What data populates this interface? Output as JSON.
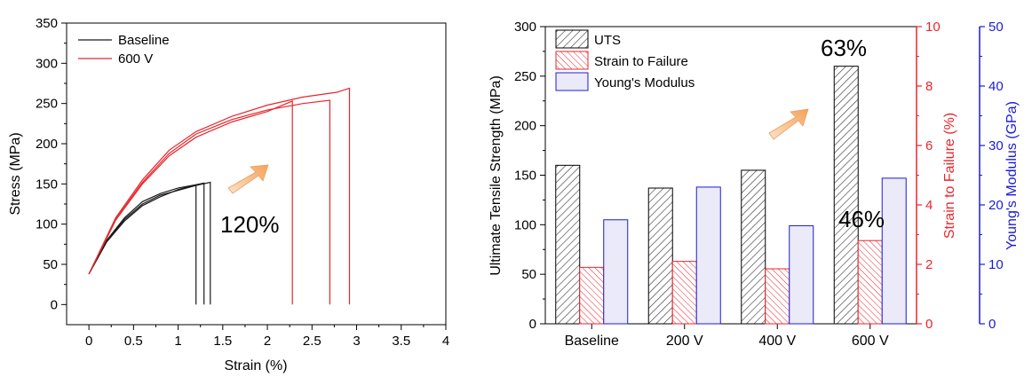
{
  "chart_data": [
    {
      "type": "line",
      "xlabel": "Strain (%)",
      "ylabel": "Stress (MPa)",
      "xlim": [
        -0.25,
        4
      ],
      "ylim": [
        -25,
        350
      ],
      "xticks": [
        "0",
        "0.5",
        "1",
        "1.5",
        "2",
        "2.5",
        "3",
        "3.5",
        "4"
      ],
      "yticks": [
        "0",
        "50",
        "100",
        "150",
        "200",
        "250",
        "300",
        "350"
      ],
      "legend_position": "top-left",
      "annotation": "120%",
      "series": [
        {
          "name": "Baseline",
          "color": "#1a1a1a",
          "legend": true,
          "points": [
            [
              0,
              38
            ],
            [
              0.2,
              78
            ],
            [
              0.4,
              104
            ],
            [
              0.6,
              123
            ],
            [
              0.8,
              134
            ],
            [
              1.0,
              143
            ],
            [
              1.1,
              146
            ],
            [
              1.2,
              148
            ],
            [
              1.2,
              0
            ]
          ]
        },
        {
          "name": "",
          "color": "#1a1a1a",
          "legend": false,
          "points": [
            [
              0,
              38
            ],
            [
              0.2,
              80
            ],
            [
              0.4,
              108
            ],
            [
              0.6,
              128
            ],
            [
              0.8,
              138
            ],
            [
              1.0,
              145
            ],
            [
              1.2,
              149
            ],
            [
              1.29,
              151
            ],
            [
              1.29,
              0
            ]
          ]
        },
        {
          "name": "",
          "color": "#1a1a1a",
          "legend": false,
          "points": [
            [
              0,
              38
            ],
            [
              0.2,
              79
            ],
            [
              0.4,
              106
            ],
            [
              0.6,
              125
            ],
            [
              0.8,
              136
            ],
            [
              1.0,
              142
            ],
            [
              1.2,
              148
            ],
            [
              1.36,
              152
            ],
            [
              1.36,
              0
            ]
          ]
        },
        {
          "name": "600 V",
          "color": "#e8262c",
          "legend": true,
          "points": [
            [
              0,
              38
            ],
            [
              0.3,
              105
            ],
            [
              0.6,
              150
            ],
            [
              0.9,
              185
            ],
            [
              1.2,
              208
            ],
            [
              1.6,
              227
            ],
            [
              2.0,
              240
            ],
            [
              2.28,
              253
            ],
            [
              2.28,
              0
            ]
          ]
        },
        {
          "name": "",
          "color": "#e8262c",
          "legend": false,
          "points": [
            [
              0,
              38
            ],
            [
              0.3,
              106
            ],
            [
              0.6,
              152
            ],
            [
              0.9,
              188
            ],
            [
              1.2,
              212
            ],
            [
              1.6,
              230
            ],
            [
              2.0,
              242
            ],
            [
              2.4,
              250
            ],
            [
              2.7,
              254
            ],
            [
              2.7,
              0
            ]
          ]
        },
        {
          "name": "",
          "color": "#e8262c",
          "legend": false,
          "points": [
            [
              0,
              38
            ],
            [
              0.3,
              108
            ],
            [
              0.6,
              155
            ],
            [
              0.9,
              192
            ],
            [
              1.2,
              215
            ],
            [
              1.6,
              234
            ],
            [
              2.0,
              248
            ],
            [
              2.4,
              258
            ],
            [
              2.78,
              264
            ],
            [
              2.92,
              269
            ],
            [
              2.92,
              0
            ]
          ]
        }
      ]
    },
    {
      "type": "bar",
      "categories": [
        "Baseline",
        "200 V",
        "400 V",
        "600 V"
      ],
      "ylabel": "Ultimate Tensile Strength (MPa)",
      "ylabel_right1": "Strain to Failure (%)",
      "ylabel_right2": "Young's Modulus (GPa)",
      "ylim": [
        0,
        300
      ],
      "ylim_right1": [
        0,
        10
      ],
      "ylim_right2": [
        0,
        50
      ],
      "yticks": [
        "0",
        "50",
        "100",
        "150",
        "200",
        "250",
        "300"
      ],
      "yticks_right1": [
        "0",
        "2",
        "4",
        "6",
        "8",
        "10"
      ],
      "yticks_right2": [
        "0",
        "10",
        "20",
        "30",
        "40",
        "50"
      ],
      "legend_position": "top-left",
      "series": [
        {
          "name": "UTS",
          "axis": "left",
          "color": "#333333",
          "values": [
            160,
            137,
            155,
            260
          ]
        },
        {
          "name": "Strain to Failure",
          "axis": "right1",
          "color": "#e8262c",
          "values": [
            1.9,
            2.1,
            1.85,
            2.8
          ]
        },
        {
          "name": "Young's Modulus",
          "axis": "right2",
          "color": "#1c1cd6",
          "values": [
            17.5,
            23,
            16.5,
            24.5
          ]
        }
      ],
      "annotations": [
        "63%",
        "46%"
      ]
    }
  ]
}
